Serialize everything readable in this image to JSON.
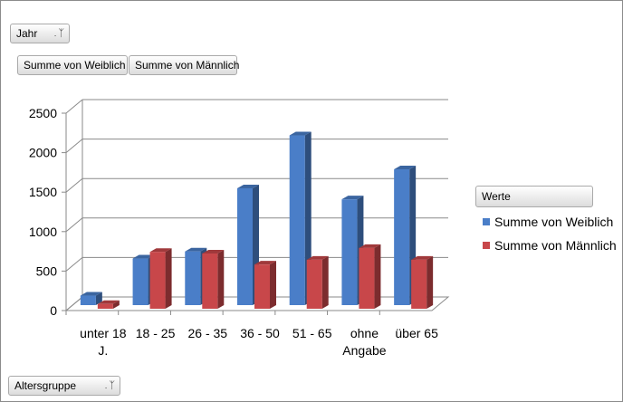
{
  "filters": {
    "jahr_label": "Jahr",
    "series_buttons": [
      "Summe von Weiblich",
      "Summe von Männlich"
    ],
    "altersgruppe_label": "Altersgruppe",
    "filter_icon": "filter-dropdown-icon"
  },
  "legend": {
    "title": "Werte",
    "entries": [
      "Summe von Weiblich",
      "Summe von Männlich"
    ]
  },
  "chart_data": {
    "type": "bar",
    "subtype": "3d-clustered-column",
    "categories": [
      [
        "unter 18",
        "J."
      ],
      [
        "18 - 25"
      ],
      [
        "26 - 35"
      ],
      [
        "36 - 50"
      ],
      [
        "51 - 65"
      ],
      [
        "ohne",
        "Angabe"
      ],
      [
        "über 65"
      ]
    ],
    "series": [
      {
        "name": "Summe von Weiblich",
        "color": "#4a7ec8",
        "values": [
          120,
          590,
          680,
          1480,
          2150,
          1340,
          1720
        ]
      },
      {
        "name": "Summe von Männlich",
        "color": "#c8474a",
        "values": [
          60,
          720,
          700,
          560,
          620,
          770,
          620
        ]
      }
    ],
    "yticks": [
      0,
      500,
      1000,
      1500,
      2000,
      2500
    ],
    "ylim": [
      0,
      2500
    ],
    "grid": true,
    "legend_position": "right"
  }
}
